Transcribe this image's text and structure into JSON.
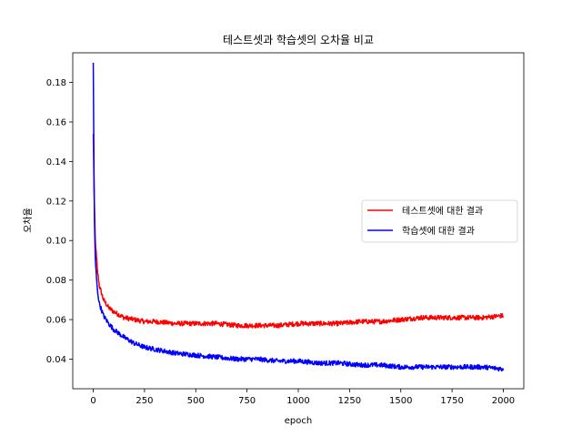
{
  "chart_data": {
    "type": "line",
    "title": "테스트셋과 학습셋의 오차율 비교",
    "xlabel": "epoch",
    "ylabel": "오차율",
    "xlim": [
      -100,
      2100
    ],
    "ylim": [
      0.025,
      0.195
    ],
    "xticks": [
      0,
      250,
      500,
      750,
      1000,
      1250,
      1500,
      1750,
      2000
    ],
    "xtick_labels": [
      "0",
      "250",
      "500",
      "750",
      "1000",
      "1250",
      "1500",
      "1750",
      "2000"
    ],
    "yticks": [
      0.04,
      0.06,
      0.08,
      0.1,
      0.12,
      0.14,
      0.16,
      0.18
    ],
    "ytick_labels": [
      "0.04",
      "0.06",
      "0.08",
      "0.10",
      "0.12",
      "0.14",
      "0.16",
      "0.18"
    ],
    "grid": false,
    "legend_position": "center-right",
    "series": [
      {
        "name": "테스트셋에 대한 결과",
        "color": "#ff0000",
        "x": [
          0,
          5,
          10,
          20,
          30,
          50,
          75,
          100,
          150,
          200,
          250,
          300,
          400,
          500,
          600,
          700,
          800,
          900,
          1000,
          1100,
          1200,
          1300,
          1400,
          1500,
          1600,
          1700,
          1800,
          1900,
          2000
        ],
        "y": [
          0.154,
          0.12,
          0.1,
          0.085,
          0.077,
          0.07,
          0.066,
          0.064,
          0.061,
          0.06,
          0.059,
          0.059,
          0.058,
          0.058,
          0.058,
          0.057,
          0.057,
          0.057,
          0.058,
          0.058,
          0.058,
          0.059,
          0.059,
          0.06,
          0.061,
          0.061,
          0.061,
          0.061,
          0.062
        ]
      },
      {
        "name": "학습셋에 대한 결과",
        "color": "#0000ff",
        "x": [
          0,
          5,
          10,
          20,
          30,
          50,
          75,
          100,
          150,
          200,
          250,
          300,
          400,
          500,
          600,
          700,
          800,
          900,
          1000,
          1100,
          1200,
          1300,
          1400,
          1500,
          1600,
          1700,
          1800,
          1900,
          2000
        ],
        "y": [
          0.19,
          0.115,
          0.09,
          0.075,
          0.068,
          0.062,
          0.058,
          0.055,
          0.051,
          0.048,
          0.046,
          0.045,
          0.043,
          0.042,
          0.041,
          0.04,
          0.04,
          0.039,
          0.039,
          0.038,
          0.038,
          0.037,
          0.037,
          0.036,
          0.036,
          0.036,
          0.036,
          0.036,
          0.035
        ]
      }
    ]
  }
}
